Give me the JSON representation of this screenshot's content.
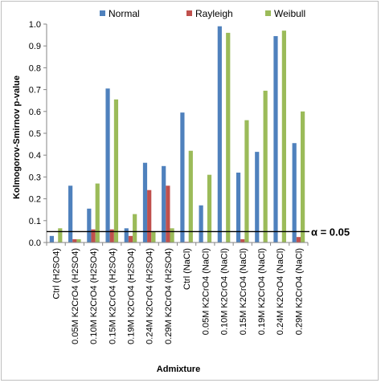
{
  "chart_data": {
    "type": "bar",
    "xlabel": "Admixture",
    "ylabel": "Kolmogorov-Smirnov p-value",
    "ylim": [
      0,
      1.0
    ],
    "yticks": [
      "0.0",
      "0.1",
      "0.2",
      "0.3",
      "0.4",
      "0.5",
      "0.6",
      "0.7",
      "0.8",
      "0.9",
      "1.0"
    ],
    "grid": false,
    "legend_position": "top",
    "categories": [
      "Ctrl (H2SO4)",
      "0.05M K2CrO4 (H2SO4)",
      "0.10M K2CrO4 (H2SO4)",
      "0.15M K2CrO4 (H2SO4)",
      "0.19M K2CrO4 (H2SO4)",
      "0.24M K2CrO4 (H2SO4)",
      "0.29M K2CrO4 (H2SO4)",
      "Ctrl (NaCl)",
      "0.05M K2CrO4 (NaCl)",
      "0.10M K2CrO4 (NaCl)",
      "0.15M K2CrO4 (NaCl)",
      "0.19M K2CrO4 (NaCl)",
      "0.24M K2CrO4 (NaCl)",
      "0.29M K2CrO4 (NaCl)"
    ],
    "series": [
      {
        "name": "Normal",
        "color": "#4f81bd",
        "values": [
          0.03,
          0.26,
          0.155,
          0.705,
          0.065,
          0.365,
          0.35,
          0.595,
          0.17,
          0.99,
          0.32,
          0.415,
          0.945,
          0.455
        ]
      },
      {
        "name": "Rayleigh",
        "color": "#c0504d",
        "values": [
          0.002,
          0.015,
          0.06,
          0.06,
          0.03,
          0.24,
          0.26,
          0.003,
          0.002,
          0.002,
          0.015,
          0.002,
          0.002,
          0.025
        ]
      },
      {
        "name": "Weibull",
        "color": "#9bbb59",
        "values": [
          0.065,
          0.015,
          0.27,
          0.655,
          0.13,
          0.05,
          0.065,
          0.42,
          0.31,
          0.96,
          0.56,
          0.695,
          0.97,
          0.6
        ]
      }
    ],
    "threshold": {
      "value": 0.05,
      "label": "α = 0.05",
      "color": "#000000"
    }
  }
}
